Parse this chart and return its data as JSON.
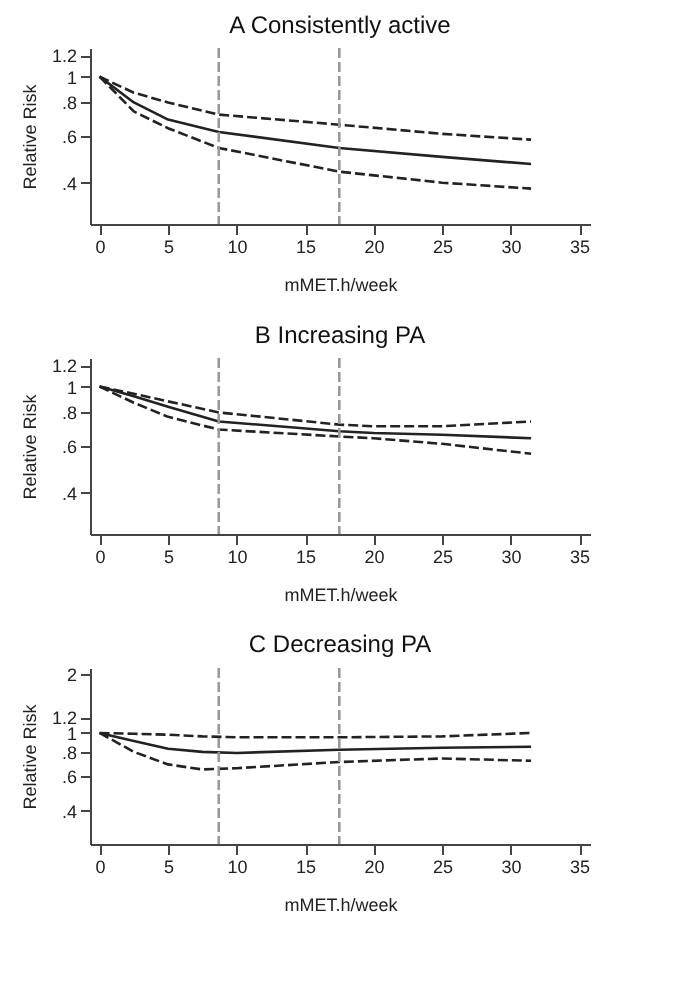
{
  "chart_data": [
    {
      "type": "line",
      "title": "A  Consistently active",
      "xlabel": "mMET.h/week",
      "ylabel": "Relative Risk",
      "log": "y",
      "grid": false,
      "xlim": [
        -0.7,
        35.8
      ],
      "xticks": [
        0,
        5,
        10,
        15,
        20,
        25,
        30,
        35
      ],
      "ylim": [
        0.28,
        1.28
      ],
      "yticks": [
        {
          "value": 0.4,
          "label": ".4"
        },
        {
          "value": 0.6,
          "label": ".6"
        },
        {
          "value": 0.8,
          "label": ".8"
        },
        1,
        1.2
      ],
      "x": [
        0,
        2.5,
        5,
        8.7,
        17.5,
        25,
        31.5
      ],
      "series": [
        {
          "color": "#222222",
          "line_style": "solid",
          "values": [
            1,
            0.8,
            0.69,
            0.62,
            0.54,
            0.5,
            0.47
          ]
        },
        {
          "color": "#222222",
          "line_style": "dashed",
          "values": [
            1,
            0.87,
            0.8,
            0.72,
            0.66,
            0.61,
            0.58
          ]
        },
        {
          "color": "#222222",
          "line_style": "dashed",
          "values": [
            1,
            0.74,
            0.64,
            0.54,
            0.44,
            0.4,
            0.38
          ]
        }
      ],
      "ref_lines": [
        {
          "axis": "x",
          "value": 8.7,
          "color": "#999999",
          "line_style": "dashed"
        },
        {
          "axis": "x",
          "value": 17.5,
          "color": "#999999",
          "line_style": "dashed"
        }
      ]
    },
    {
      "type": "line",
      "title": "B  Increasing PA",
      "xlabel": "mMET.h/week",
      "ylabel": "Relative Risk",
      "log": "y",
      "grid": false,
      "xlim": [
        -0.7,
        35.8
      ],
      "xticks": [
        0,
        5,
        10,
        15,
        20,
        25,
        30,
        35
      ],
      "ylim": [
        0.28,
        1.28
      ],
      "yticks": [
        {
          "value": 0.4,
          "label": ".4"
        },
        {
          "value": 0.6,
          "label": ".6"
        },
        {
          "value": 0.8,
          "label": ".8"
        },
        1,
        1.2
      ],
      "x": [
        0,
        2.5,
        5,
        8.7,
        17.5,
        20,
        25,
        31.5
      ],
      "series": [
        {
          "color": "#222222",
          "line_style": "solid",
          "values": [
            1,
            0.92,
            0.84,
            0.74,
            0.68,
            0.67,
            0.66,
            0.64
          ]
        },
        {
          "color": "#222222",
          "line_style": "dashed",
          "values": [
            1,
            0.94,
            0.88,
            0.8,
            0.72,
            0.71,
            0.71,
            0.74
          ]
        },
        {
          "color": "#222222",
          "line_style": "dashed",
          "values": [
            1,
            0.87,
            0.77,
            0.69,
            0.65,
            0.64,
            0.61,
            0.56
          ]
        }
      ],
      "ref_lines": [
        {
          "axis": "x",
          "value": 8.7,
          "color": "#999999",
          "line_style": "dashed"
        },
        {
          "axis": "x",
          "value": 17.5,
          "color": "#999999",
          "line_style": "dashed"
        }
      ]
    },
    {
      "type": "line",
      "title": "C  Decreasing PA",
      "xlabel": "mMET.h/week",
      "ylabel": "Relative Risk",
      "log": "y",
      "grid": false,
      "xlim": [
        -0.7,
        35.8
      ],
      "xticks": [
        0,
        5,
        10,
        15,
        20,
        25,
        30,
        35
      ],
      "ylim": [
        0.27,
        2.15
      ],
      "yticks": [
        {
          "value": 0.4,
          "label": ".4"
        },
        {
          "value": 0.6,
          "label": ".6"
        },
        {
          "value": 0.8,
          "label": ".8"
        },
        1,
        1.2,
        2
      ],
      "x": [
        0,
        2.5,
        5,
        7.5,
        10,
        17.5,
        25,
        31.5
      ],
      "series": [
        {
          "color": "#222222",
          "line_style": "solid",
          "values": [
            1,
            0.91,
            0.83,
            0.8,
            0.79,
            0.82,
            0.84,
            0.85
          ]
        },
        {
          "color": "#222222",
          "line_style": "dashed",
          "values": [
            1,
            0.99,
            0.98,
            0.96,
            0.95,
            0.95,
            0.96,
            1
          ]
        },
        {
          "color": "#222222",
          "line_style": "dashed",
          "values": [
            1,
            0.8,
            0.69,
            0.65,
            0.66,
            0.71,
            0.74,
            0.72
          ]
        }
      ],
      "ref_lines": [
        {
          "axis": "x",
          "value": 8.7,
          "color": "#999999",
          "line_style": "dashed"
        },
        {
          "axis": "x",
          "value": 17.5,
          "color": "#999999",
          "line_style": "dashed"
        }
      ]
    }
  ]
}
